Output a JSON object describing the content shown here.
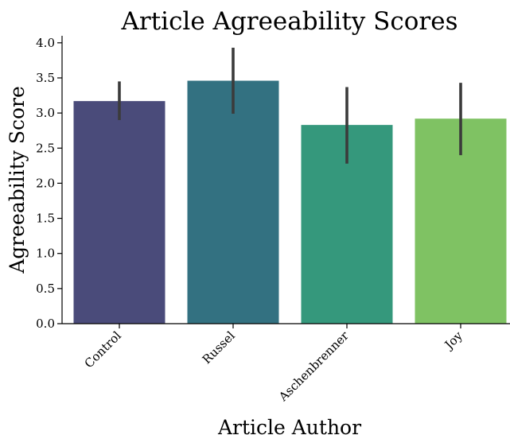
{
  "chart_data": {
    "type": "bar",
    "title": "Article Agreeability Scores",
    "xlabel": "Article Author",
    "ylabel": "Agreeability Score",
    "categories": [
      "Control",
      "Russel",
      "Aschenbrenner",
      "Joy"
    ],
    "values": [
      3.17,
      3.46,
      2.83,
      2.92
    ],
    "error_low": [
      2.9,
      2.99,
      2.28,
      2.4
    ],
    "error_high": [
      3.45,
      3.93,
      3.37,
      3.43
    ],
    "colors": [
      "#4a4b7a",
      "#337181",
      "#35987c",
      "#7fc263"
    ],
    "ylim": [
      0,
      4.1
    ],
    "yticks": [
      "0.0",
      "0.5",
      "1.0",
      "1.5",
      "2.0",
      "2.5",
      "3.0",
      "3.5",
      "4.0"
    ],
    "grid": false,
    "legend": "none"
  }
}
